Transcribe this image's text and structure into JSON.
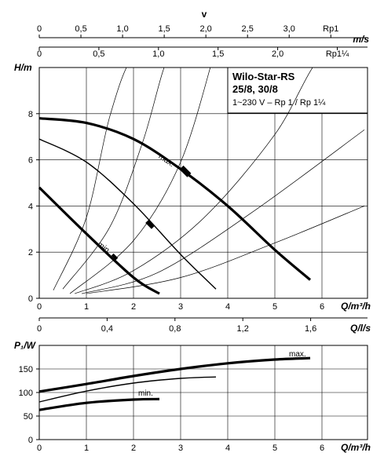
{
  "chart_data": [
    {
      "type": "line",
      "title": "Wilo-Star-RS",
      "subtitle_lines": [
        "25/8, 30/8",
        "1~230 V – Rp 1 / Rp 1¼"
      ],
      "ylabel": "H/m",
      "xlabel": "Q/m³/h",
      "xlim": [
        0,
        6.6
      ],
      "ylim": [
        0,
        10
      ],
      "xticks": [
        "0",
        "1",
        "2",
        "3",
        "4",
        "5",
        "6"
      ],
      "yticks": [
        "0",
        "2",
        "4",
        "6",
        "8"
      ],
      "top_axes": [
        {
          "label": "v",
          "ticks": [
            "0",
            "0,5",
            "1,0",
            "1,5",
            "2,0",
            "2,5",
            "3,0",
            "Rp1"
          ],
          "step_q": 0.884,
          "unit": "m/s"
        },
        {
          "label": "",
          "ticks": [
            "0",
            "0,5",
            "1,0",
            "1,5",
            "2,0",
            "Rp1¼"
          ],
          "step_q": 1.265,
          "unit": ""
        }
      ],
      "bottom_axis": {
        "label": "Q/l/s",
        "ticks": [
          "0",
          "0,4",
          "0,8",
          "1,2",
          "1,6"
        ]
      },
      "series": [
        {
          "name": "max.",
          "x": [
            0,
            1,
            2,
            3,
            4,
            5,
            5.75
          ],
          "y": [
            7.8,
            7.6,
            6.9,
            5.6,
            4.0,
            2.1,
            0.8
          ]
        },
        {
          "name": "",
          "x": [
            0,
            1,
            2,
            3,
            3.75
          ],
          "y": [
            6.9,
            5.9,
            4.1,
            1.9,
            0.4
          ]
        },
        {
          "name": "min.",
          "x": [
            0,
            1,
            2,
            2.55
          ],
          "y": [
            4.8,
            2.8,
            0.9,
            0.2
          ]
        }
      ],
      "system_curves": [
        {
          "x": [
            0.3,
            1.0,
            1.5,
            2.0,
            2.6
          ],
          "y": [
            0.35,
            3.5,
            7.9,
            10.5,
            10.5
          ]
        },
        {
          "x": [
            0.5,
            1.5,
            2.2,
            2.75,
            3.2
          ],
          "y": [
            0.4,
            3.1,
            6.8,
            10.5,
            10.5
          ]
        },
        {
          "x": [
            0.65,
            2.0,
            3.0,
            3.7
          ],
          "y": [
            0.2,
            2.5,
            5.9,
            10.5
          ]
        },
        {
          "x": [
            0.75,
            2.0,
            3.5,
            5.0,
            6.0,
            6.9
          ],
          "y": [
            0.2,
            1.2,
            3.5,
            7.1,
            10.5,
            10.5
          ]
        },
        {
          "x": [
            0.9,
            2.5,
            4.5,
            6.9
          ],
          "y": [
            0.2,
            1.1,
            3.7,
            7.3
          ]
        },
        {
          "x": [
            1.0,
            3.0,
            5.0,
            6.9
          ],
          "y": [
            0.2,
            0.9,
            2.4,
            4.0
          ]
        }
      ],
      "markers": [
        {
          "x": 3.1,
          "y": 5.5
        },
        {
          "x": 2.35,
          "y": 3.2
        },
        {
          "x": 1.6,
          "y": 1.8
        }
      ]
    },
    {
      "type": "line",
      "ylabel": "P₁/W",
      "xlabel": "Q/m³/h",
      "xlim": [
        0,
        6.6
      ],
      "ylim": [
        0,
        200
      ],
      "xticks": [
        "0",
        "1",
        "2",
        "3",
        "4",
        "5",
        "6"
      ],
      "yticks": [
        "0",
        "50",
        "100",
        "150"
      ],
      "series": [
        {
          "name": "max.",
          "x": [
            0,
            1,
            2,
            3,
            4,
            5,
            5.75
          ],
          "y": [
            102,
            118,
            135,
            150,
            162,
            170,
            173
          ]
        },
        {
          "name": "",
          "x": [
            0,
            1,
            2,
            3,
            3.75
          ],
          "y": [
            80,
            103,
            120,
            130,
            133
          ]
        },
        {
          "name": "min.",
          "x": [
            0,
            1,
            2,
            2.55
          ],
          "y": [
            63,
            78,
            85,
            86
          ]
        }
      ]
    }
  ]
}
